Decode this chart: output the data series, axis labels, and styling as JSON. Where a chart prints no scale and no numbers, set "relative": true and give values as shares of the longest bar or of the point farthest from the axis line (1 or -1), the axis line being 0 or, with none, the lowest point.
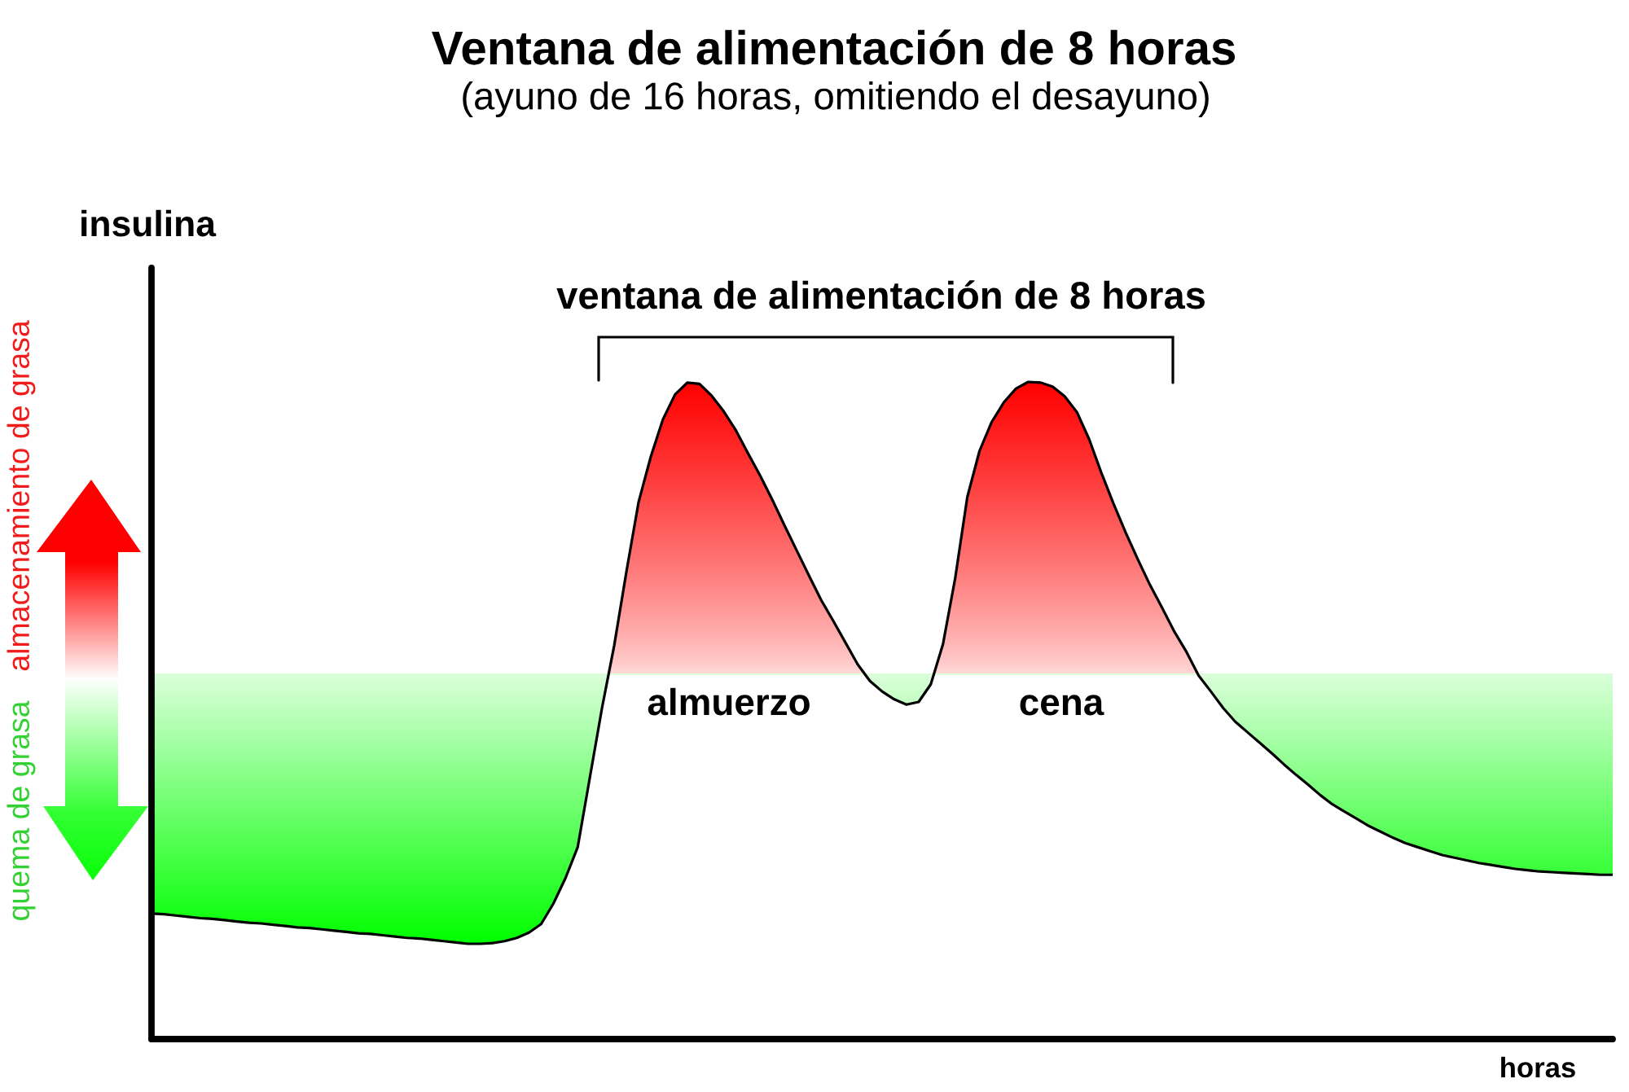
{
  "chart_data": {
    "type": "line",
    "title": "Ventana de alimentación de 8 horas",
    "subtitle": "(ayuno de 16 horas, omitiendo el desayuno)",
    "xlabel": "horas",
    "ylabel": "insulina",
    "relative": true,
    "categories": [
      null,
      null,
      null,
      null,
      null,
      null,
      null,
      null,
      null,
      null,
      null,
      null,
      null,
      null,
      null,
      null,
      null,
      null,
      null,
      null,
      null,
      null,
      null,
      null,
      null,
      null,
      null,
      null,
      null,
      null,
      null,
      null,
      null,
      null,
      null,
      null,
      null,
      null,
      null,
      null,
      null,
      null,
      null,
      null,
      null,
      null,
      null,
      null,
      null,
      null,
      null,
      null,
      null,
      null,
      null,
      null,
      null,
      null,
      null,
      null,
      null,
      null,
      null,
      null,
      null,
      null,
      null,
      null,
      null,
      null,
      null,
      null,
      null,
      null,
      null,
      null,
      null,
      null,
      null,
      null,
      null,
      null,
      null,
      null,
      null,
      null,
      null,
      null,
      null,
      null,
      null,
      null,
      null,
      null,
      null,
      null,
      null,
      null,
      null,
      null,
      null,
      null,
      null,
      null,
      null,
      null,
      null,
      null,
      null,
      null,
      null,
      null,
      null,
      null,
      null,
      null,
      null,
      null,
      null,
      null,
      null
    ],
    "series": [
      {
        "color": "#000000",
        "values": [
          0.191,
          0.19,
          0.188,
          0.186,
          0.184,
          0.183,
          0.181,
          0.179,
          0.177,
          0.176,
          0.174,
          0.172,
          0.17,
          0.169,
          0.167,
          0.165,
          0.163,
          0.161,
          0.16,
          0.158,
          0.156,
          0.154,
          0.153,
          0.151,
          0.149,
          0.147,
          0.145,
          0.145,
          0.146,
          0.149,
          0.154,
          0.162,
          0.175,
          0.206,
          0.245,
          0.292,
          0.398,
          0.504,
          0.599,
          0.711,
          0.817,
          0.886,
          0.943,
          0.981,
          0.999,
          0.997,
          0.979,
          0.955,
          0.926,
          0.891,
          0.857,
          0.82,
          0.781,
          0.743,
          0.705,
          0.668,
          0.636,
          0.603,
          0.57,
          0.545,
          0.529,
          0.517,
          0.509,
          0.513,
          0.54,
          0.601,
          0.701,
          0.825,
          0.895,
          0.939,
          0.969,
          0.99,
          1.0,
          0.999,
          0.993,
          0.978,
          0.954,
          0.913,
          0.862,
          0.815,
          0.771,
          0.73,
          0.691,
          0.656,
          0.62,
          0.589,
          0.553,
          0.529,
          0.504,
          0.483,
          0.467,
          0.451,
          0.435,
          0.418,
          0.402,
          0.387,
          0.371,
          0.357,
          0.346,
          0.335,
          0.324,
          0.315,
          0.306,
          0.298,
          0.292,
          0.286,
          0.28,
          0.276,
          0.272,
          0.268,
          0.265,
          0.262,
          0.259,
          0.257,
          0.255,
          0.254,
          0.253,
          0.252,
          0.251,
          0.25,
          0.25
        ]
      }
    ],
    "ref_lines": [
      {
        "axis": "y",
        "value": 0.555,
        "color": "#dcfcdc"
      }
    ],
    "annotations": [
      "ventana de alimentación de 8 horas",
      "almuerzo",
      "cena",
      "almacenamiento de grasa",
      "quema de grasa"
    ]
  }
}
